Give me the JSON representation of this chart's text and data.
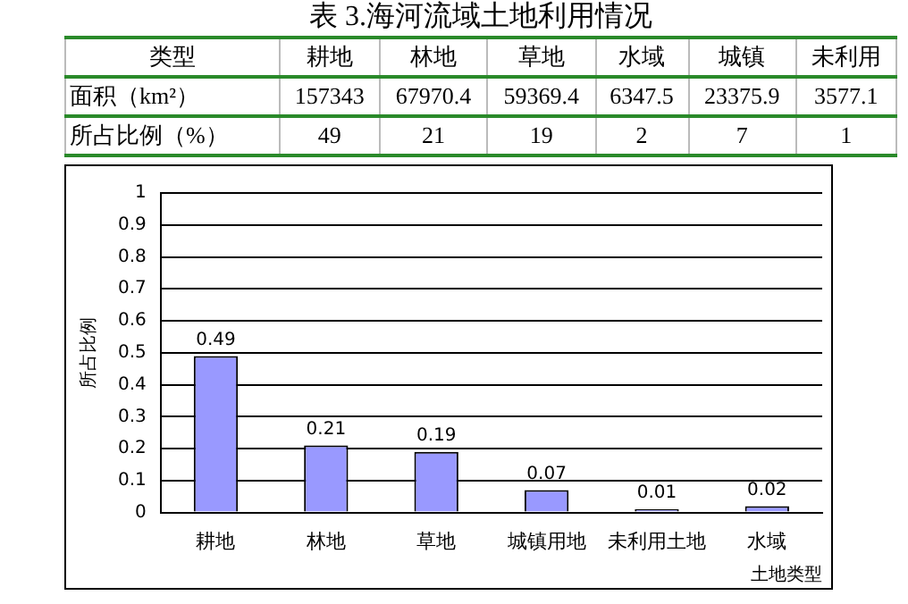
{
  "chart_data": [
    {
      "type": "other",
      "title": "表 3.海河流域土地利用情况",
      "xlabel": "类型",
      "data_labels": true,
      "categories": [
        "耕地",
        "林地",
        "草地",
        "水域",
        "城镇",
        "未利用"
      ],
      "series": [
        {
          "name": "面积（km²）",
          "values": [
            157343,
            67970.4,
            59369.4,
            6347.5,
            23375.9,
            3577.1
          ]
        },
        {
          "name": "所占比例（%）",
          "values": [
            49,
            21,
            19,
            2,
            7,
            1
          ]
        }
      ]
    },
    {
      "type": "bar",
      "categories": [
        "耕地",
        "林地",
        "草地",
        "城镇用地",
        "未利用土地",
        "水域"
      ],
      "values": [
        0.49,
        0.21,
        0.19,
        0.07,
        0.01,
        0.02
      ],
      "color": "#9999ff",
      "ylabel": "所占比例",
      "xlabel": "土地类型",
      "ylim": [
        0,
        1
      ],
      "yticks": [
        0,
        0.1,
        0.2,
        0.3,
        0.4,
        0.5,
        0.6,
        0.7,
        0.8,
        0.9,
        1
      ],
      "grid": "y",
      "data_labels": true
    }
  ]
}
